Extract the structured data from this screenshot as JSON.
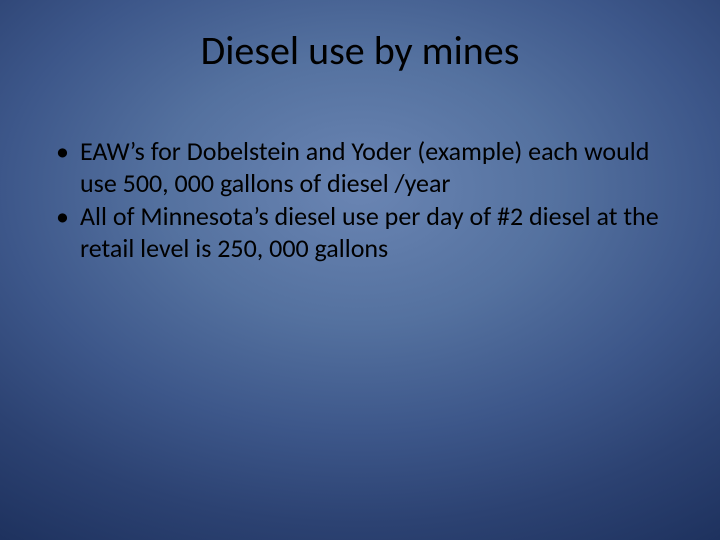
{
  "slide": {
    "title": "Diesel use  by mines",
    "bullets": [
      "EAW’s for Dobelstein and Yoder (example) each would use 500, 000 gallons of diesel /year",
      "All of Minnesota’s diesel use per day of #2 diesel at the retail level is 250, 000 gallons"
    ],
    "style": {
      "title_fontsize": 40,
      "body_fontsize": 26,
      "text_color": "#000000",
      "background_gradient_center": "#6a85b3",
      "background_gradient_edge": "#112348",
      "font_family": "Calibri"
    }
  }
}
